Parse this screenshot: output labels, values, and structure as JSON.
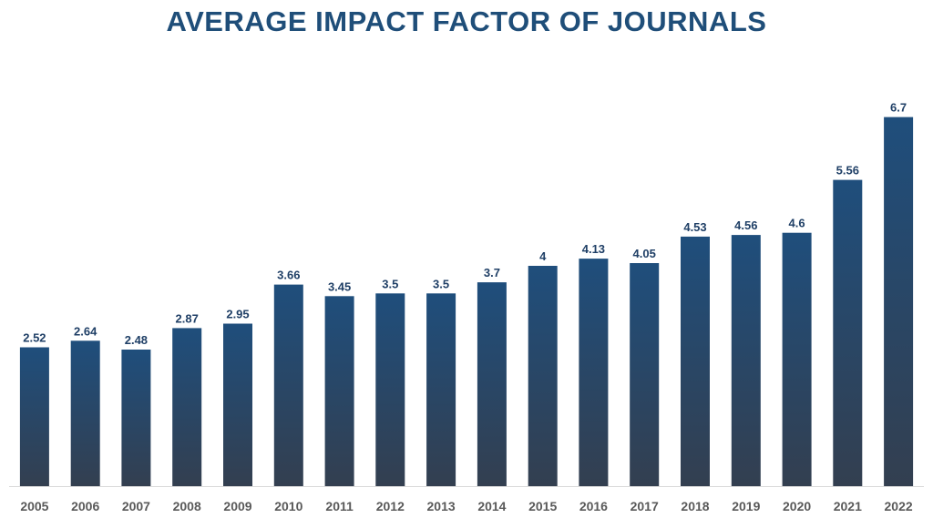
{
  "chart_data": {
    "type": "bar",
    "title": "AVERAGE IMPACT FACTOR OF JOURNALS",
    "xlabel": "",
    "ylabel": "",
    "ylim": [
      0,
      7.2
    ],
    "grid": false,
    "legend": "none",
    "categories": [
      "2005",
      "2006",
      "2007",
      "2008",
      "2009",
      "2010",
      "2011",
      "2012",
      "2013",
      "2014",
      "2015",
      "2016",
      "2017",
      "2018",
      "2019",
      "2020",
      "2021",
      "2022"
    ],
    "values": [
      2.52,
      2.64,
      2.48,
      2.87,
      2.95,
      3.66,
      3.45,
      3.5,
      3.5,
      3.7,
      4,
      4.13,
      4.05,
      4.53,
      4.56,
      4.6,
      5.56,
      6.7
    ],
    "colors": {
      "bar_top": "#1f4e7c",
      "bar_bottom": "#333f50",
      "label": "#1f3f66",
      "tick": "#595959",
      "title": "#1f4e79"
    }
  }
}
